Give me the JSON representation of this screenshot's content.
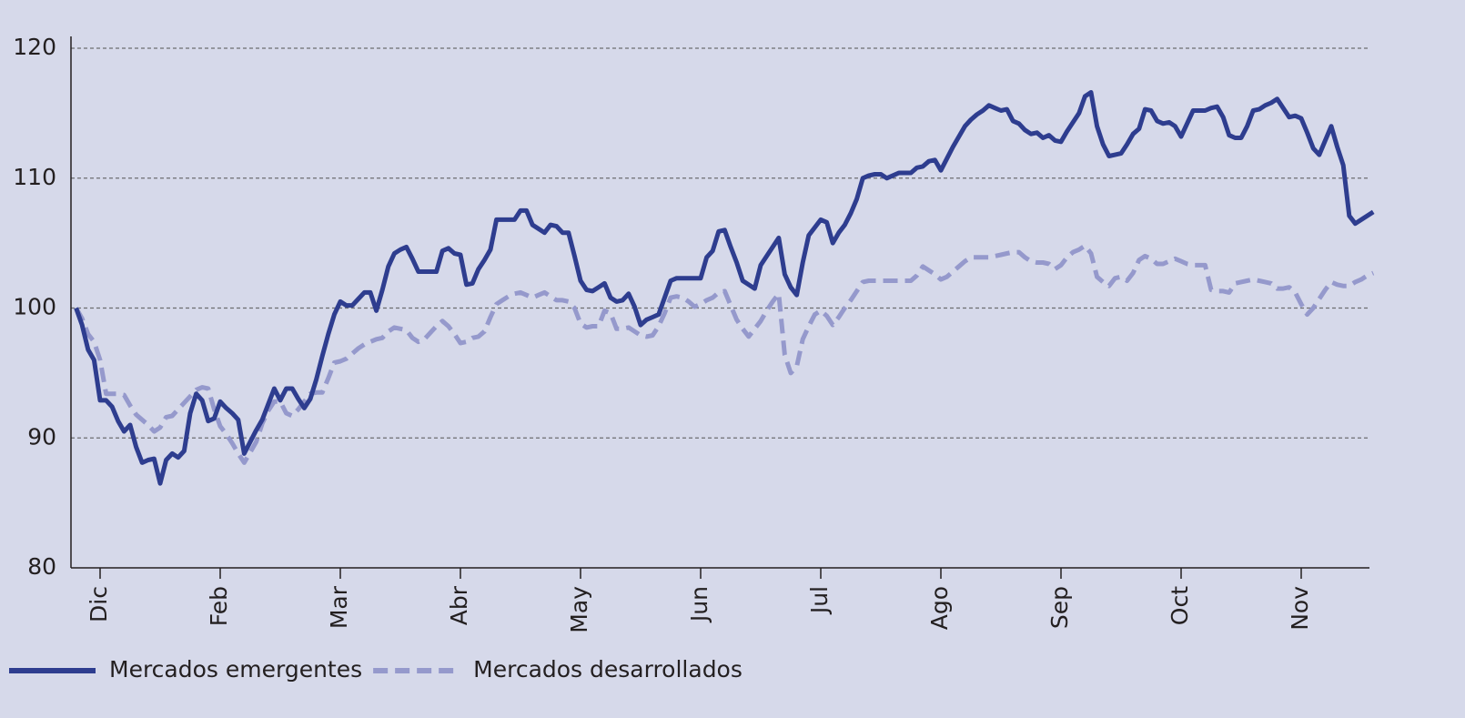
{
  "chart_data": {
    "type": "line",
    "categories": [
      null,
      null,
      null,
      null,
      "Dic",
      null,
      null,
      null,
      null,
      null,
      null,
      null,
      null,
      null,
      null,
      null,
      null,
      null,
      null,
      null,
      null,
      null,
      null,
      null,
      "Feb",
      null,
      null,
      null,
      null,
      null,
      null,
      null,
      null,
      null,
      null,
      null,
      null,
      null,
      null,
      null,
      null,
      null,
      null,
      null,
      "Mar",
      null,
      null,
      null,
      null,
      null,
      null,
      null,
      null,
      null,
      null,
      null,
      null,
      null,
      null,
      null,
      null,
      null,
      null,
      null,
      "Abr",
      null,
      null,
      null,
      null,
      null,
      null,
      null,
      null,
      null,
      null,
      null,
      null,
      null,
      null,
      null,
      null,
      null,
      null,
      null,
      "May",
      null,
      null,
      null,
      null,
      null,
      null,
      null,
      null,
      null,
      null,
      null,
      null,
      null,
      null,
      null,
      null,
      null,
      null,
      null,
      "Jun",
      null,
      null,
      null,
      null,
      null,
      null,
      null,
      null,
      null,
      null,
      null,
      null,
      null,
      null,
      null,
      null,
      null,
      null,
      null,
      "Jul",
      null,
      null,
      null,
      null,
      null,
      null,
      null,
      null,
      null,
      null,
      null,
      null,
      null,
      null,
      null,
      null,
      null,
      null,
      null,
      "Ago",
      null,
      null,
      null,
      null,
      null,
      null,
      null,
      null,
      null,
      null,
      null,
      null,
      null,
      null,
      null,
      null,
      null,
      null,
      null,
      "Sep",
      null,
      null,
      null,
      null,
      null,
      null,
      null,
      null,
      null,
      null,
      null,
      null,
      null,
      null,
      null,
      null,
      null,
      null,
      null,
      "Oct",
      null,
      null,
      null,
      null,
      null,
      null,
      null,
      null,
      null,
      null,
      null,
      null,
      null,
      null,
      null,
      null,
      null,
      null,
      null,
      "Nov",
      null,
      null,
      null,
      null,
      null,
      null,
      null,
      null,
      null,
      null,
      null,
      null
    ],
    "series": [
      {
        "name": "Mercados emergentes",
        "color": "#2e3d8f",
        "line_style": "solid",
        "values": [
          100,
          98.7,
          96.8,
          96.0,
          92.9,
          92.9,
          92.4,
          91.3,
          90.5,
          91.0,
          89.3,
          88.1,
          88.3,
          88.4,
          86.5,
          88.3,
          88.8,
          88.5,
          89.0,
          91.9,
          93.4,
          92.9,
          91.3,
          91.5,
          92.8,
          92.3,
          91.9,
          91.4,
          88.8,
          89.7,
          90.6,
          91.4,
          92.6,
          93.8,
          92.9,
          93.8,
          93.8,
          93.0,
          92.3,
          93.0,
          94.5,
          96.3,
          98.0,
          99.5,
          100.5,
          100.2,
          100.2,
          100.7,
          101.2,
          101.2,
          99.8,
          101.4,
          103.2,
          104.2,
          104.5,
          104.7,
          103.8,
          102.8,
          102.8,
          102.8,
          102.8,
          104.4,
          104.6,
          104.2,
          104.1,
          101.8,
          101.9,
          103.0,
          103.7,
          104.5,
          106.8,
          106.8,
          106.8,
          106.8,
          107.5,
          107.5,
          106.4,
          106.1,
          105.8,
          106.4,
          106.3,
          105.8,
          105.8,
          104.0,
          102.1,
          101.4,
          101.3,
          101.6,
          101.9,
          100.8,
          100.5,
          100.6,
          101.1,
          100.1,
          98.7,
          99.1,
          99.3,
          99.5,
          100.8,
          102.1,
          102.3,
          102.3,
          102.3,
          102.3,
          102.3,
          103.9,
          104.4,
          105.9,
          106.0,
          104.7,
          103.5,
          102.1,
          101.8,
          101.5,
          103.3,
          104.0,
          104.7,
          105.4,
          102.6,
          101.6,
          101.0,
          103.5,
          105.6,
          106.2,
          106.8,
          106.6,
          105.0,
          105.8,
          106.4,
          107.3,
          108.4,
          110.0,
          110.2,
          110.3,
          110.3,
          110.0,
          110.2,
          110.4,
          110.4,
          110.4,
          110.8,
          110.9,
          111.3,
          111.4,
          110.6,
          111.5,
          112.4,
          113.2,
          114.0,
          114.5,
          114.9,
          115.2,
          115.6,
          115.4,
          115.2,
          115.3,
          114.4,
          114.2,
          113.7,
          113.4,
          113.5,
          113.1,
          113.3,
          112.9,
          112.8,
          113.6,
          114.3,
          115.0,
          116.3,
          116.6,
          114.0,
          112.6,
          111.7,
          111.8,
          111.9,
          112.6,
          113.4,
          113.8,
          115.3,
          115.2,
          114.4,
          114.2,
          114.3,
          114.0,
          113.2,
          114.2,
          115.2,
          115.2,
          115.2,
          115.4,
          115.5,
          114.7,
          113.3,
          113.1,
          113.1,
          114.0,
          115.2,
          115.3,
          115.6,
          115.8,
          116.1,
          115.4,
          114.7,
          114.8,
          114.6,
          113.5,
          112.3,
          111.8,
          112.9,
          114.0,
          112.4,
          111.0,
          107.1,
          106.5,
          106.8,
          107.1,
          107.4
        ]
      },
      {
        "name": "Mercados desarrollados",
        "color": "#9599cc",
        "line_style": "dashed",
        "values": [
          100,
          99.2,
          98.0,
          97.4,
          96.0,
          93.4,
          93.4,
          93.4,
          93.3,
          92.5,
          91.8,
          91.4,
          91.0,
          90.5,
          90.8,
          91.6,
          91.7,
          92.2,
          92.7,
          93.2,
          93.7,
          93.9,
          93.8,
          92.2,
          90.9,
          90.3,
          89.6,
          88.8,
          88.1,
          88.9,
          89.7,
          91.1,
          92.1,
          92.8,
          92.8,
          91.9,
          91.7,
          92.2,
          92.8,
          93.4,
          93.5,
          93.5,
          94.6,
          95.8,
          95.9,
          96.1,
          96.5,
          96.9,
          97.2,
          97.4,
          97.6,
          97.7,
          98.2,
          98.5,
          98.4,
          98.3,
          97.7,
          97.4,
          97.6,
          98.1,
          98.6,
          99.0,
          98.6,
          98.0,
          97.3,
          97.4,
          97.7,
          97.8,
          98.2,
          99.3,
          100.3,
          100.6,
          100.9,
          101.1,
          101.2,
          101.0,
          100.8,
          101.0,
          101.2,
          100.9,
          100.6,
          100.6,
          100.5,
          100.0,
          98.8,
          98.5,
          98.6,
          98.6,
          99.8,
          99.6,
          98.4,
          98.4,
          98.5,
          98.2,
          97.9,
          97.8,
          97.9,
          98.6,
          99.6,
          100.8,
          100.9,
          100.8,
          100.5,
          100.1,
          100.3,
          100.6,
          100.8,
          101.2,
          101.3,
          100.2,
          99.1,
          98.4,
          97.8,
          98.4,
          99.0,
          99.8,
          100.5,
          101.1,
          96.4,
          95.0,
          95.5,
          97.6,
          98.6,
          99.5,
          99.8,
          99.4,
          98.7,
          99.3,
          100.0,
          100.6,
          101.3,
          102.0,
          102.1,
          102.1,
          102.1,
          102.1,
          102.1,
          102.1,
          102.1,
          102.1,
          102.5,
          103.2,
          102.9,
          102.6,
          102.2,
          102.4,
          102.8,
          103.2,
          103.6,
          103.9,
          103.9,
          103.9,
          103.9,
          104.0,
          104.1,
          104.2,
          104.3,
          104.3,
          103.9,
          103.6,
          103.5,
          103.5,
          103.4,
          103.0,
          103.3,
          103.9,
          104.3,
          104.5,
          104.8,
          104.2,
          102.4,
          102.0,
          101.7,
          102.3,
          102.4,
          102.1,
          102.7,
          103.7,
          104.0,
          103.8,
          103.4,
          103.4,
          103.6,
          103.8,
          103.6,
          103.4,
          103.3,
          103.3,
          103.3,
          101.4,
          101.3,
          101.3,
          101.2,
          101.9,
          102.0,
          102.1,
          102.2,
          102.1,
          102.0,
          101.9,
          101.5,
          101.5,
          101.6,
          101.2,
          100.3,
          99.5,
          100.0,
          100.7,
          101.4,
          102.0,
          101.8,
          101.7,
          101.7,
          102.0,
          102.2,
          102.5,
          102.7
        ]
      }
    ],
    "ylim": [
      80,
      120
    ],
    "yticks": [
      80,
      90,
      100,
      110,
      120
    ],
    "grid": true,
    "legend": "bottom-left"
  }
}
